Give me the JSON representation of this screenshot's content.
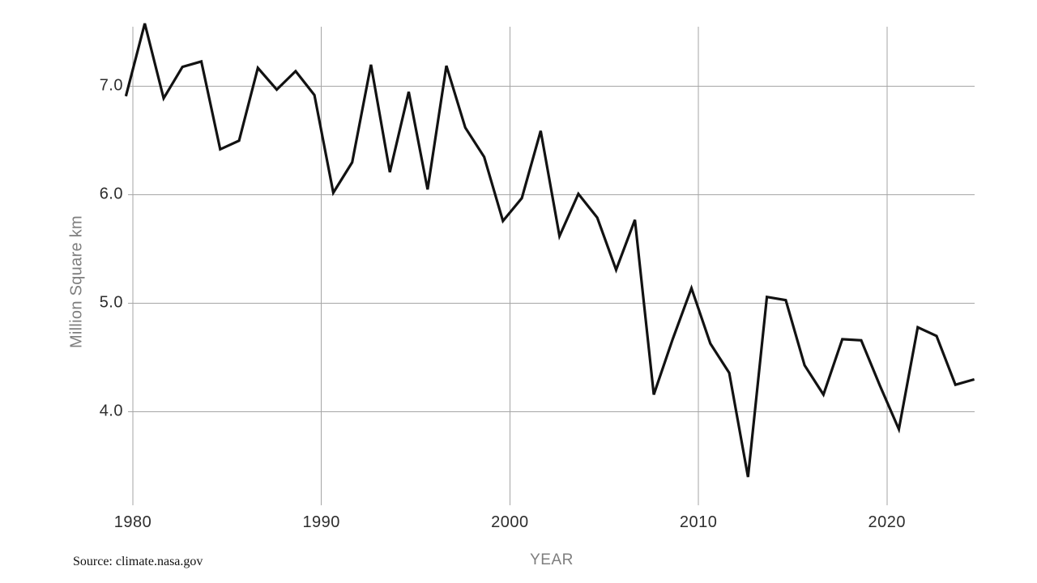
{
  "chart_data": {
    "type": "line",
    "title": "",
    "xlabel": "YEAR",
    "ylabel": "Million Square km",
    "source": "Source: climate.nasa.gov",
    "x": [
      1979,
      1980,
      1981,
      1982,
      1983,
      1984,
      1985,
      1986,
      1987,
      1988,
      1989,
      1990,
      1991,
      1992,
      1993,
      1994,
      1995,
      1996,
      1997,
      1998,
      1999,
      2000,
      2001,
      2002,
      2003,
      2004,
      2005,
      2006,
      2007,
      2008,
      2009,
      2010,
      2011,
      2012,
      2013,
      2014,
      2015,
      2016,
      2017,
      2018,
      2019,
      2020,
      2021,
      2022,
      2023,
      2024
    ],
    "values": [
      6.91,
      7.58,
      6.89,
      7.18,
      7.23,
      6.42,
      6.5,
      7.17,
      6.97,
      7.14,
      6.92,
      6.02,
      6.3,
      7.2,
      6.21,
      6.95,
      6.05,
      7.19,
      6.62,
      6.35,
      5.76,
      5.97,
      6.59,
      5.62,
      6.01,
      5.79,
      5.31,
      5.77,
      4.16,
      4.67,
      5.14,
      4.63,
      4.36,
      3.4,
      5.06,
      5.03,
      4.43,
      4.16,
      4.67,
      4.66,
      4.24,
      3.84,
      4.78,
      4.7,
      4.25,
      4.3
    ],
    "xticks": [
      1980,
      1990,
      2000,
      2010,
      2020
    ],
    "xtick_labels": [
      "1980",
      "1990",
      "2000",
      "2010",
      "2020"
    ],
    "yticks": [
      7.0,
      6.0,
      5.0,
      4.0
    ],
    "ytick_labels": [
      "7.0",
      "6.0",
      "5.0",
      "4.0"
    ],
    "xlim": [
      1979.3,
      2024.7
    ],
    "ylim": [
      3.1,
      7.6
    ],
    "grid": true,
    "legend": false,
    "colors": {
      "line": "#121212",
      "grid": "#a6a6a6",
      "tick_text": "#2d2d2d",
      "axis_title_text": "#7e7e7e",
      "background": "#ffffff"
    }
  }
}
